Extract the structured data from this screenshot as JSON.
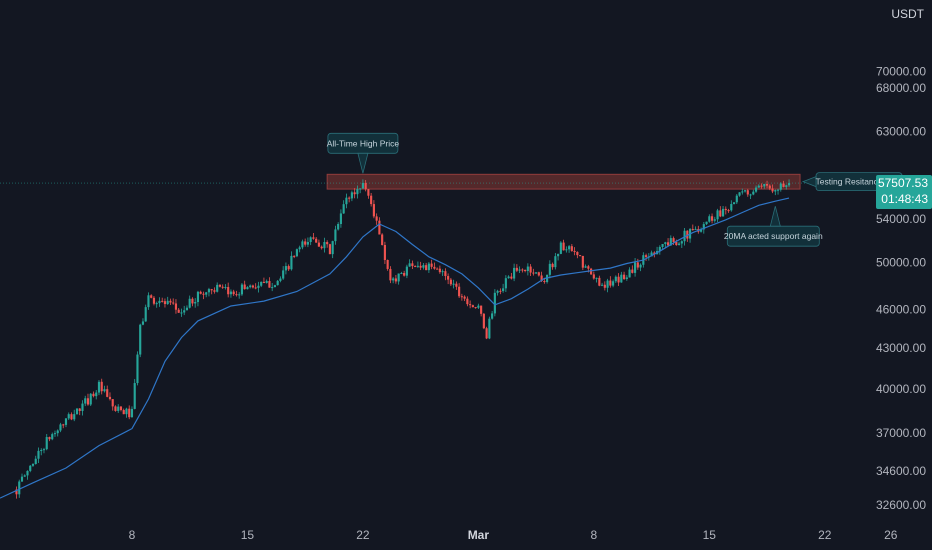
{
  "chart": {
    "currency": "USDT",
    "last_price": "57507.53",
    "countdown": "01:48:43",
    "colors": {
      "background": "#131722",
      "up": "#26a69a",
      "down": "#ef5350",
      "ma": "#2f76c8",
      "resistance_fill": "#5c2b2d",
      "resistance_stroke": "#a0403f",
      "annotation_bg": "#12303a",
      "annotation_border": "#2a6e78",
      "price_tag": "#26a69a",
      "axis_text": "#b2b5be"
    }
  },
  "chart_data": {
    "type": "candlestick",
    "title": "",
    "y_ticks": [
      70000,
      68000,
      63000,
      54000,
      50000,
      46000,
      43000,
      40000,
      37000,
      34600,
      32600
    ],
    "y_tick_labels": [
      "70000.00",
      "68000.00",
      "63000.00",
      "54000.00",
      "50000.00",
      "46000.00",
      "43000.00",
      "40000.00",
      "37000.00",
      "34600.00",
      "32600.00"
    ],
    "y_scale": "log",
    "x_ticks": [
      {
        "label": "8",
        "date": "2021-02-08"
      },
      {
        "label": "15",
        "date": "2021-02-15"
      },
      {
        "label": "22",
        "date": "2021-02-22"
      },
      {
        "label": "Mar",
        "date": "2021-03-01",
        "bold": true
      },
      {
        "label": "8",
        "date": "2021-03-08"
      },
      {
        "label": "15",
        "date": "2021-03-15"
      },
      {
        "label": "22",
        "date": "2021-03-22"
      },
      {
        "label": "26",
        "date": "2021-03-26"
      }
    ],
    "x_range": [
      "2021-01-31T00:00",
      "2021-03-28T12:00"
    ],
    "candle_interval_hours": 4,
    "last_price": 57507.53,
    "series": [
      {
        "name": "price",
        "close_keypoints": [
          [
            "2021-02-01T00:00",
            33500
          ],
          [
            "2021-02-02T00:00",
            35200
          ],
          [
            "2021-02-03T00:00",
            36700
          ],
          [
            "2021-02-04T00:00",
            37800
          ],
          [
            "2021-02-05T00:00",
            38800
          ],
          [
            "2021-02-06T00:00",
            40200
          ],
          [
            "2021-02-07T00:00",
            38500
          ],
          [
            "2021-02-08T00:00",
            38300
          ],
          [
            "2021-02-08T12:00",
            44500
          ],
          [
            "2021-02-09T00:00",
            47000
          ],
          [
            "2021-02-10T00:00",
            46500
          ],
          [
            "2021-02-11T00:00",
            45800
          ],
          [
            "2021-02-12T00:00",
            47200
          ],
          [
            "2021-02-13T00:00",
            47800
          ],
          [
            "2021-02-14T00:00",
            47300
          ],
          [
            "2021-02-15T00:00",
            48000
          ],
          [
            "2021-02-16T00:00",
            48000
          ],
          [
            "2021-02-17T00:00",
            48500
          ],
          [
            "2021-02-18T00:00",
            51000
          ],
          [
            "2021-02-19T00:00",
            52300
          ],
          [
            "2021-02-20T00:00",
            51000
          ],
          [
            "2021-02-21T00:00",
            56000
          ],
          [
            "2021-02-21T16:00",
            56800
          ],
          [
            "2021-02-22T00:00",
            57600
          ],
          [
            "2021-02-22T12:00",
            55500
          ],
          [
            "2021-02-23T00:00",
            52500
          ],
          [
            "2021-02-23T12:00",
            49000
          ],
          [
            "2021-02-24T00:00",
            48500
          ],
          [
            "2021-02-25T00:00",
            50000
          ],
          [
            "2021-02-26T00:00",
            49500
          ],
          [
            "2021-02-27T00:00",
            49000
          ],
          [
            "2021-02-28T00:00",
            47200
          ],
          [
            "2021-03-01T00:00",
            46000
          ],
          [
            "2021-03-01T12:00",
            44000
          ],
          [
            "2021-03-02T00:00",
            47000
          ],
          [
            "2021-03-03T00:00",
            49000
          ],
          [
            "2021-03-04T00:00",
            49500
          ],
          [
            "2021-03-05T00:00",
            48500
          ],
          [
            "2021-03-06T00:00",
            51500
          ],
          [
            "2021-03-07T00:00",
            50500
          ],
          [
            "2021-03-08T00:00",
            48500
          ],
          [
            "2021-03-09T00:00",
            48000
          ],
          [
            "2021-03-10T00:00",
            49000
          ],
          [
            "2021-03-11T00:00",
            50300
          ],
          [
            "2021-03-12T00:00",
            51500
          ],
          [
            "2021-03-13T00:00",
            52000
          ],
          [
            "2021-03-14T00:00",
            52800
          ],
          [
            "2021-03-15T00:00",
            54000
          ],
          [
            "2021-03-16T00:00",
            55000
          ],
          [
            "2021-03-17T00:00",
            56400
          ],
          [
            "2021-03-18T00:00",
            56800
          ],
          [
            "2021-03-19T00:00",
            57200
          ],
          [
            "2021-03-19T20:00",
            57507.53
          ]
        ]
      },
      {
        "name": "20MA",
        "points": [
          [
            "2021-01-31T00:00",
            33000
          ],
          [
            "2021-02-02T00:00",
            33900
          ],
          [
            "2021-02-04T00:00",
            34800
          ],
          [
            "2021-02-06T00:00",
            36200
          ],
          [
            "2021-02-08T00:00",
            37300
          ],
          [
            "2021-02-09T00:00",
            39300
          ],
          [
            "2021-02-10T00:00",
            42000
          ],
          [
            "2021-02-11T00:00",
            43800
          ],
          [
            "2021-02-12T00:00",
            45100
          ],
          [
            "2021-02-14T00:00",
            46300
          ],
          [
            "2021-02-16T00:00",
            46700
          ],
          [
            "2021-02-18T00:00",
            47500
          ],
          [
            "2021-02-20T00:00",
            49000
          ],
          [
            "2021-02-21T00:00",
            50500
          ],
          [
            "2021-02-22T00:00",
            52300
          ],
          [
            "2021-02-23T00:00",
            53500
          ],
          [
            "2021-02-24T00:00",
            52800
          ],
          [
            "2021-02-25T00:00",
            51600
          ],
          [
            "2021-02-26T00:00",
            50500
          ],
          [
            "2021-02-27T00:00",
            49800
          ],
          [
            "2021-02-28T00:00",
            49000
          ],
          [
            "2021-03-01T00:00",
            47800
          ],
          [
            "2021-03-02T00:00",
            46400
          ],
          [
            "2021-03-03T00:00",
            46900
          ],
          [
            "2021-03-04T00:00",
            47700
          ],
          [
            "2021-03-05T00:00",
            48600
          ],
          [
            "2021-03-06T00:00",
            48900
          ],
          [
            "2021-03-07T00:00",
            49100
          ],
          [
            "2021-03-08T00:00",
            49300
          ],
          [
            "2021-03-09T00:00",
            49500
          ],
          [
            "2021-03-10T00:00",
            49900
          ],
          [
            "2021-03-11T00:00",
            50200
          ],
          [
            "2021-03-12T00:00",
            51000
          ],
          [
            "2021-03-13T00:00",
            51900
          ],
          [
            "2021-03-14T00:00",
            52700
          ],
          [
            "2021-03-15T00:00",
            53300
          ],
          [
            "2021-03-16T00:00",
            53900
          ],
          [
            "2021-03-17T00:00",
            54600
          ],
          [
            "2021-03-18T00:00",
            55300
          ],
          [
            "2021-03-19T00:00",
            55700
          ],
          [
            "2021-03-19T20:00",
            56000
          ]
        ]
      }
    ],
    "resistance_zone": {
      "from": "2021-02-19T20:00",
      "to": "2021-03-20T12:00",
      "low": 56900,
      "high": 58400
    },
    "annotations": [
      {
        "text": "All-Time High Price",
        "at_date": "2021-02-22T00:00",
        "at_price": 58300
      },
      {
        "text": "Testing Resitance Area",
        "at_date": "2021-03-20T12:00",
        "at_price": 57650
      },
      {
        "text": "20MA acted support again",
        "at_date": "2021-03-19T00:00",
        "at_price": 55600
      }
    ]
  }
}
